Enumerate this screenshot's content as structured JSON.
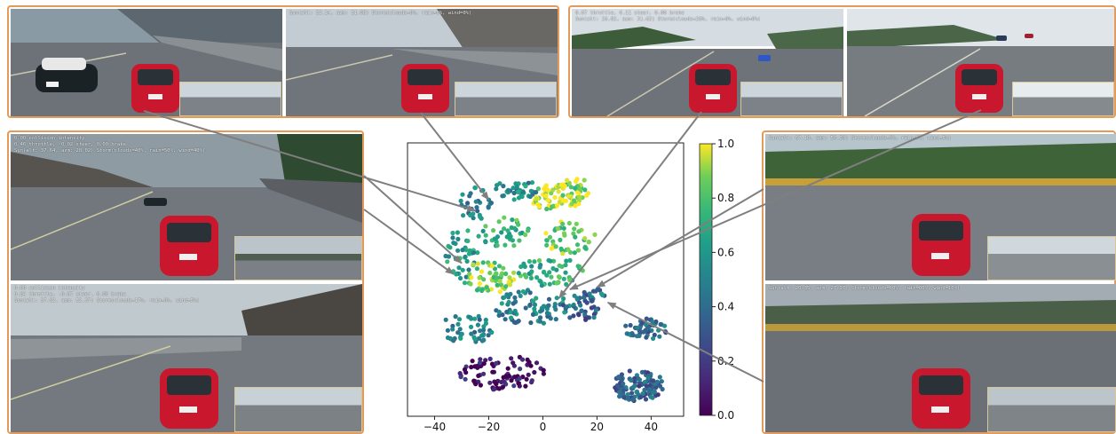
{
  "panels": {
    "top_left": [
      {
        "hud": [
          "",
          ""
        ]
      },
      {
        "hud": [
          "Sun(alt: 32.14, azm: 31.08) Storm(clouds=0%, rain=0%, wind=0%)",
          ""
        ]
      }
    ],
    "top_right": [
      {
        "hud": [
          "0.67 throttle, 0.11 steer, 0.00 brake",
          "Sun(alt: 26.82, azm: 31.63) Storm(clouds=28%, rain=0%, wind=0%)"
        ]
      },
      {
        "hud": [
          "",
          ""
        ]
      }
    ],
    "left": [
      {
        "hud": [
          "0.00 collision intensity",
          "0.46 throttle, -0.02 steer, 0.00 brake",
          "Sun(alt: 37.64, azm: 28.02) Storm(clouds=40%, rain=50%, wind=40%)"
        ]
      },
      {
        "hud": [
          "0.00 collision intensity",
          "0.84 throttle, -0.07 steer, 0.00 brake",
          "Sun(alt: 37.82, azm: 52.37) Storm(clouds=17%, rain=0%, wind=5%)"
        ]
      }
    ],
    "right": [
      {
        "hud": [
          "Sun(alt: 67.10, azm: 56.30) Storm(clouds=0%, rain=0%, wind=5%)"
        ]
      },
      {
        "hud": [
          "Sun(alt: 20.35, azm: 27.37) Storm(clouds=60%, rain=60%, wind=10%)"
        ]
      }
    ]
  },
  "chart_data": {
    "type": "scatter",
    "xticks": [
      -40,
      -20,
      0,
      20,
      40
    ],
    "xlim": [
      -50,
      52
    ],
    "ylim": [
      -62,
      63
    ],
    "colorbar": {
      "ticks": [
        "0.0",
        "0.2",
        "0.4",
        "0.6",
        "0.8",
        "1.0"
      ],
      "range": [
        0,
        1
      ],
      "colormap": "viridis"
    },
    "clusters": [
      {
        "cx": 5,
        "cy": 38,
        "rx": 10,
        "ry": 6,
        "n": 70,
        "v": 0.95
      },
      {
        "cx": 12,
        "cy": 42,
        "rx": 6,
        "ry": 5,
        "n": 25,
        "v": 0.9
      },
      {
        "cx": -10,
        "cy": 42,
        "rx": 8,
        "ry": 5,
        "n": 35,
        "v": 0.55
      },
      {
        "cx": -25,
        "cy": 35,
        "rx": 6,
        "ry": 8,
        "n": 30,
        "v": 0.5
      },
      {
        "cx": 10,
        "cy": 20,
        "rx": 10,
        "ry": 8,
        "n": 45,
        "v": 0.85
      },
      {
        "cx": -15,
        "cy": 22,
        "rx": 10,
        "ry": 7,
        "n": 40,
        "v": 0.72
      },
      {
        "cx": -30,
        "cy": 12,
        "rx": 6,
        "ry": 12,
        "n": 40,
        "v": 0.62
      },
      {
        "cx": -20,
        "cy": 2,
        "rx": 10,
        "ry": 8,
        "n": 60,
        "v": 0.88
      },
      {
        "cx": 3,
        "cy": 4,
        "rx": 12,
        "ry": 7,
        "n": 55,
        "v": 0.7
      },
      {
        "cx": -5,
        "cy": -12,
        "rx": 15,
        "ry": 8,
        "n": 80,
        "v": 0.5
      },
      {
        "cx": 14,
        "cy": -12,
        "rx": 7,
        "ry": 7,
        "n": 40,
        "v": 0.35
      },
      {
        "cx": -28,
        "cy": -22,
        "rx": 10,
        "ry": 7,
        "n": 45,
        "v": 0.48
      },
      {
        "cx": -15,
        "cy": -42,
        "rx": 16,
        "ry": 8,
        "n": 90,
        "v": 0.05
      },
      {
        "cx": 38,
        "cy": -22,
        "rx": 8,
        "ry": 5,
        "n": 50,
        "v": 0.4
      },
      {
        "cx": 35,
        "cy": -48,
        "rx": 10,
        "ry": 7,
        "n": 110,
        "v": 0.35
      },
      {
        "cx": 20,
        "cy": -8,
        "rx": 3,
        "ry": 5,
        "n": 15,
        "v": 0.45
      }
    ],
    "arrow_targets": [
      {
        "from": "top_left",
        "x": -25,
        "y": 32
      },
      {
        "from": "top_left_2",
        "x": -20,
        "y": 37
      },
      {
        "from": "left_1",
        "x": -30,
        "y": 8
      },
      {
        "from": "left_2",
        "x": -33,
        "y": 3
      },
      {
        "from": "top_right_1",
        "x": 6,
        "y": -8
      },
      {
        "from": "top_right_2",
        "x": 10,
        "y": -4
      },
      {
        "from": "right_1",
        "x": 20,
        "y": -3
      },
      {
        "from": "right_2",
        "x": 24,
        "y": -10
      }
    ]
  },
  "colors": {
    "frame": "#e39a5a",
    "car": "#d01e32",
    "road": "#6f7479",
    "sky": "#c9d3d9",
    "arrow": "#808080"
  }
}
